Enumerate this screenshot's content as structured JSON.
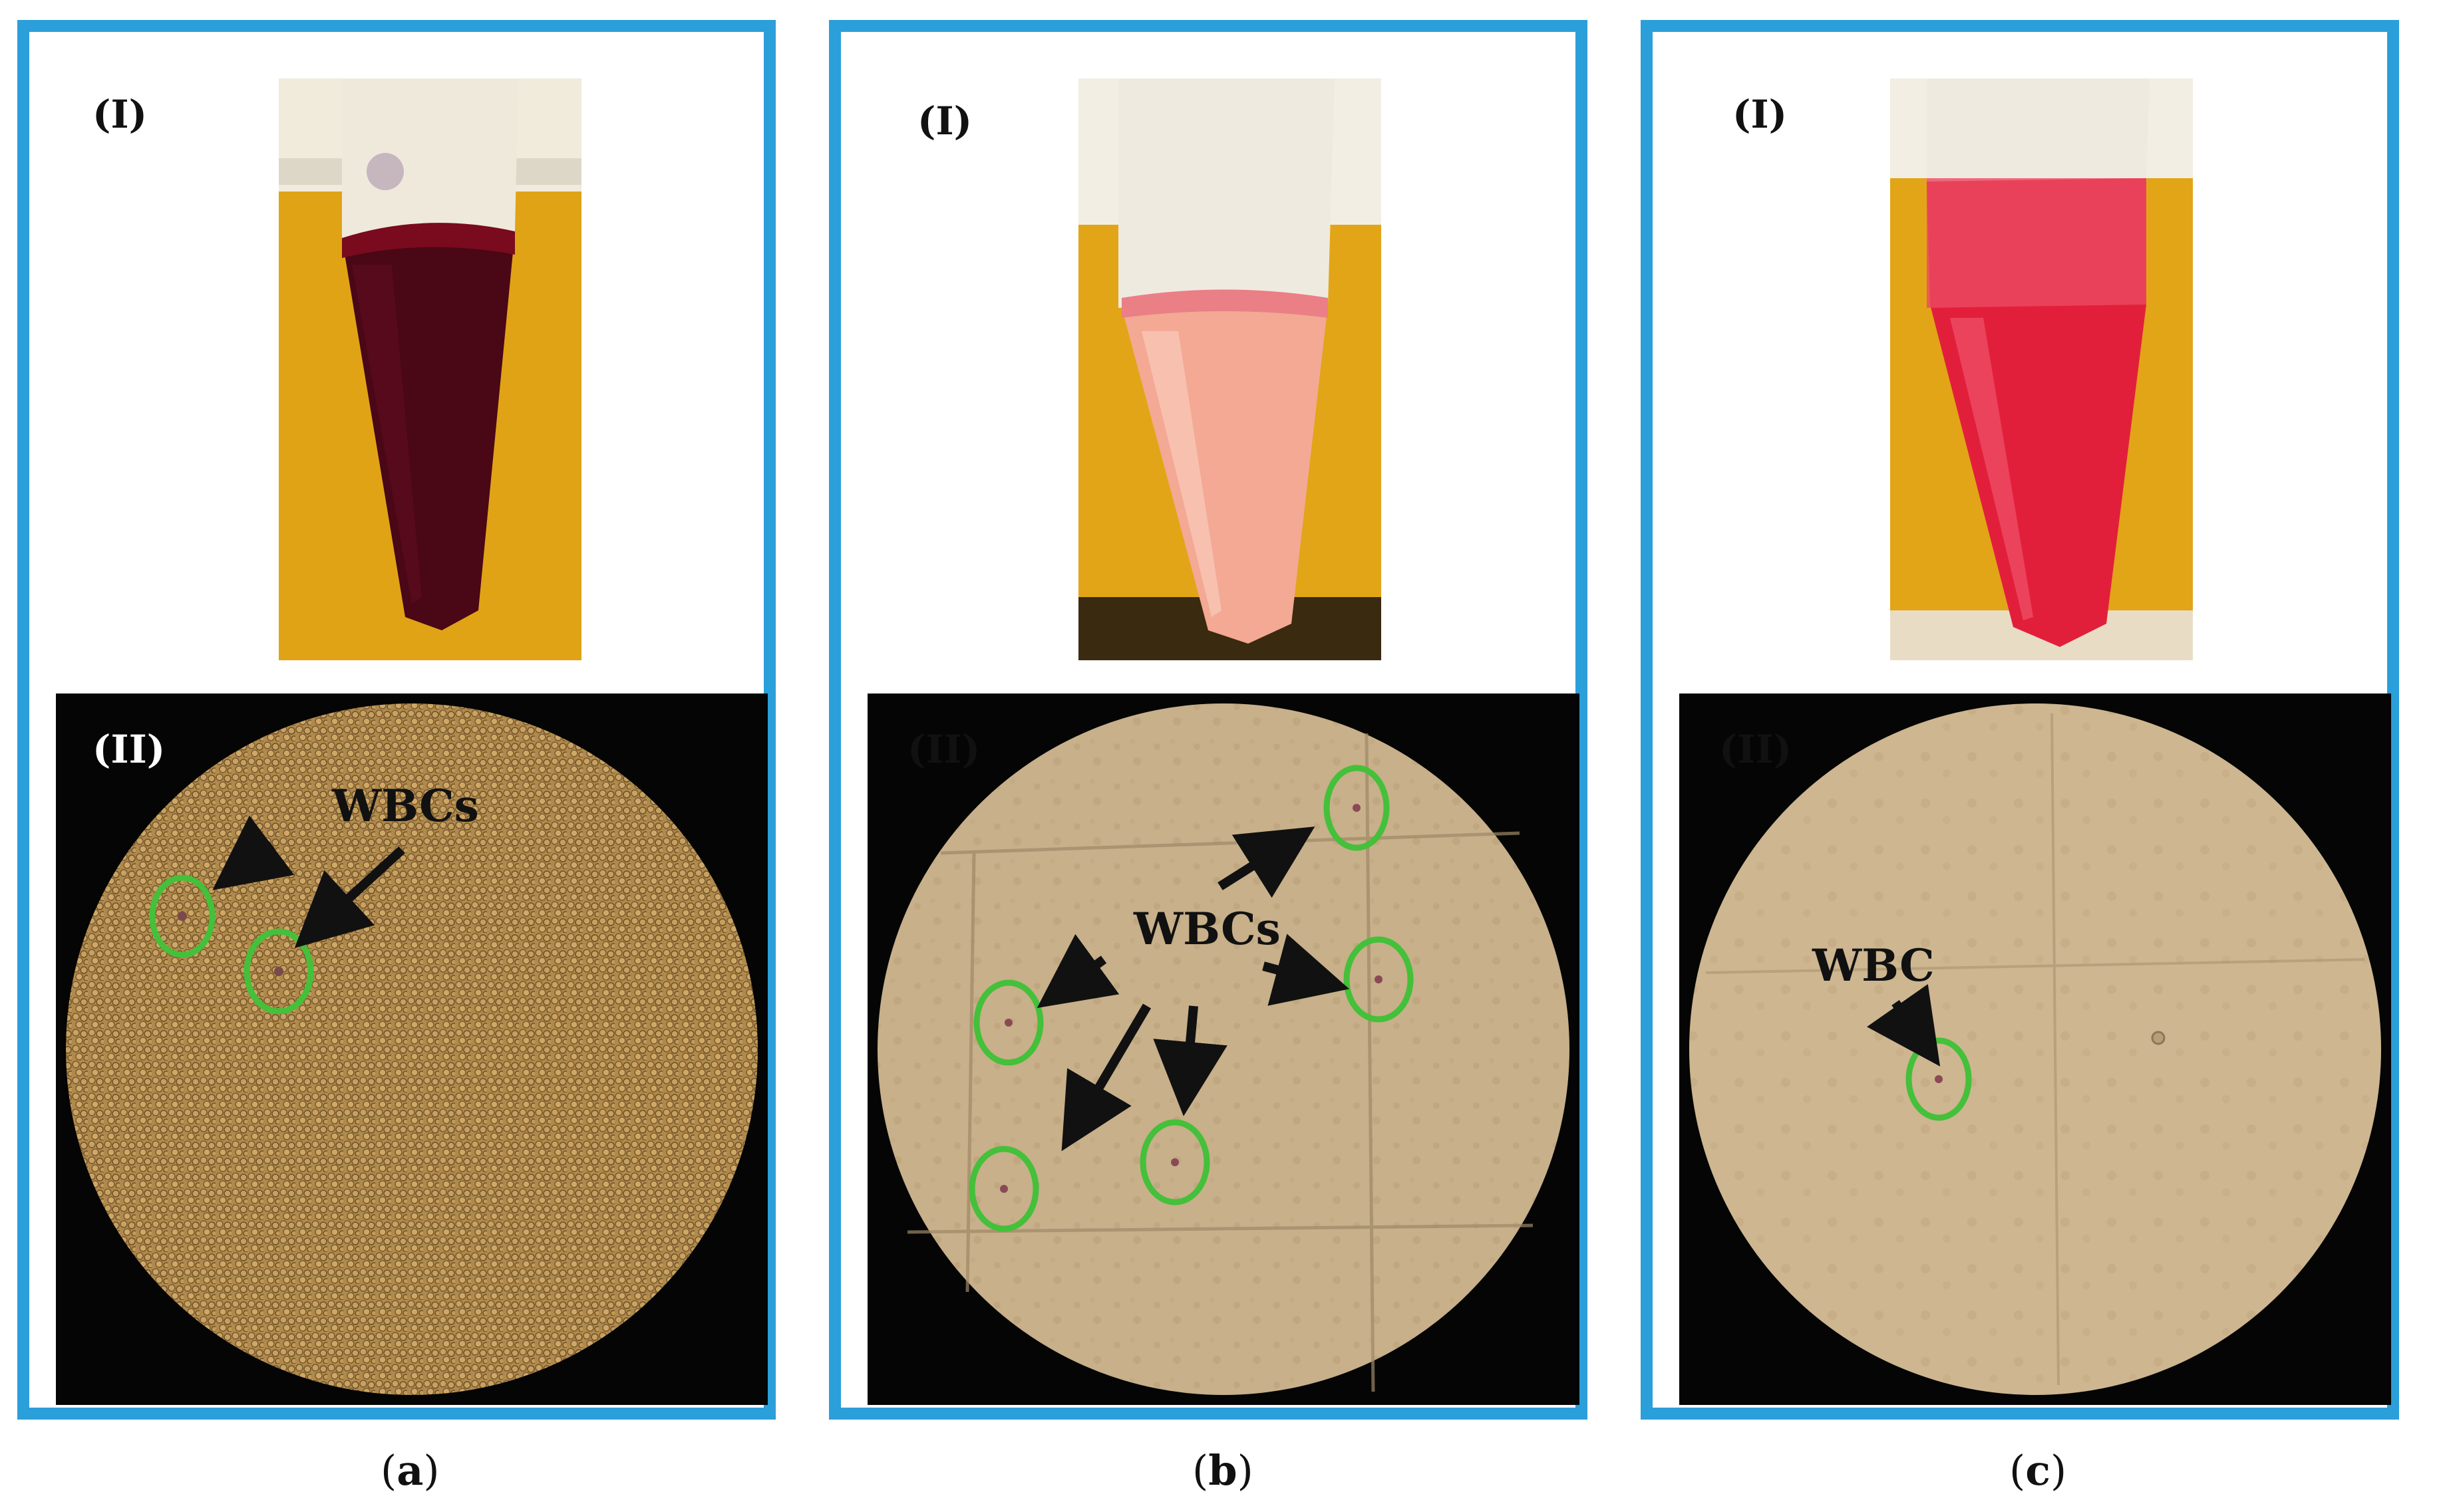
{
  "colors": {
    "frame": "#2b9fd9",
    "highlight_circle": "#44c03a",
    "arrow": "#111111",
    "backdrop": "#e0a316"
  },
  "panels": [
    {
      "label_I": "(I)",
      "label_II": "(II)",
      "annotation": "WBCs",
      "caption_open": "(",
      "caption_letter": "a",
      "caption_close": ")",
      "tube_liquid": "dark red",
      "highlighted_cells": 2
    },
    {
      "label_I": "(I)",
      "label_II": "(II)",
      "annotation": "WBCs",
      "caption_open": "(",
      "caption_letter": "b",
      "caption_close": ")",
      "tube_liquid": "pale pink",
      "highlighted_cells": 5
    },
    {
      "label_I": "(I)",
      "label_II": "(II)",
      "annotation": "WBC",
      "caption_open": "(",
      "caption_letter": "c",
      "caption_close": ")",
      "tube_liquid": "red",
      "highlighted_cells": 1
    }
  ]
}
